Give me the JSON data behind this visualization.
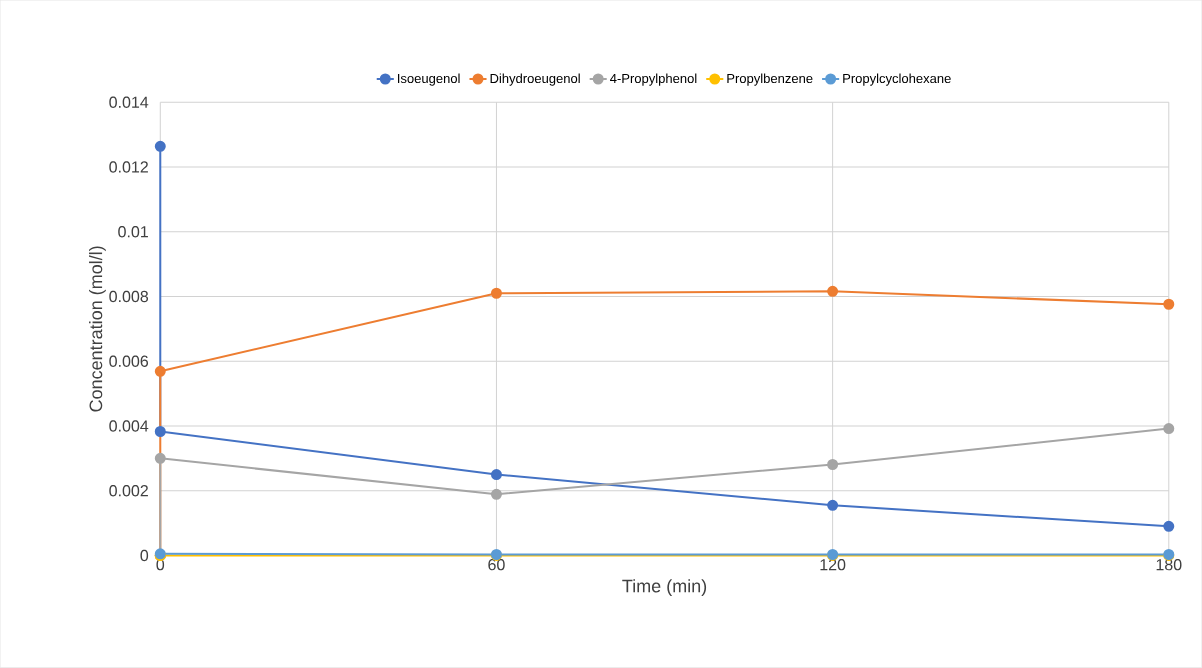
{
  "chart_data": {
    "type": "line",
    "xlabel": "Time (min)",
    "ylabel": "Concentration (mol/l)",
    "xlim": [
      0,
      180
    ],
    "xticks": [
      0,
      60,
      120,
      180
    ],
    "ylim": [
      0,
      0.014
    ],
    "yticks": [
      0,
      0.002,
      0.004,
      0.006,
      0.008,
      0.01,
      0.012,
      0.014
    ],
    "grid": true,
    "legend": "top",
    "marker": "circle",
    "line_style": "solid",
    "series": [
      {
        "name": "Isoeugenol",
        "color": "#4472c4",
        "x": [
          0,
          0,
          60,
          120,
          180
        ],
        "values": [
          0.01264,
          0.00383,
          0.0025,
          0.00155,
          0.0009
        ]
      },
      {
        "name": "Dihydroeugenol",
        "color": "#ed7d31",
        "x": [
          0,
          0,
          60,
          120,
          180
        ],
        "values": [
          0,
          0.00569,
          0.0081,
          0.00816,
          0.00776
        ]
      },
      {
        "name": "4-Propylphenol",
        "color": "#a5a5a5",
        "x": [
          0,
          0,
          60,
          120,
          180
        ],
        "values": [
          0,
          0.003,
          0.00189,
          0.00281,
          0.00392
        ]
      },
      {
        "name": "Propylbenzene",
        "color": "#ffc000",
        "x": [
          0,
          0,
          60,
          120,
          180
        ],
        "values": [
          0,
          0,
          0,
          0,
          0
        ]
      },
      {
        "name": "Propylcyclohexane",
        "color": "#5b9bd5",
        "x": [
          0,
          60,
          120,
          180
        ],
        "values": [
          5e-05,
          3e-05,
          3e-05,
          3e-05
        ]
      }
    ]
  }
}
